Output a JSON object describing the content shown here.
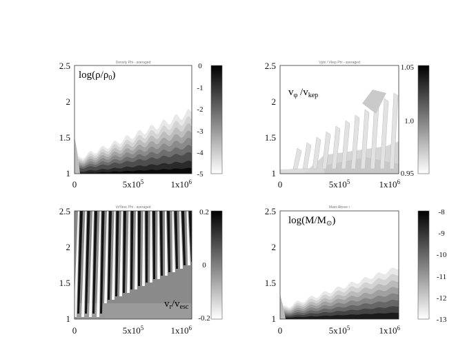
{
  "chart_data": [
    {
      "type": "heatmap",
      "panel": "density",
      "title": "Density Phi - averaged",
      "label": {
        "main": "log(ρ/ρ",
        "sub": "0",
        "tail": ")"
      },
      "x_ticks": {
        "zero": "0",
        "mid": "5x10",
        "mid_exp": "5",
        "end": "1x10",
        "end_exp": "6"
      },
      "xlim": [
        0,
        1000000
      ],
      "ylim": [
        1,
        2.5
      ],
      "y_ticks": [
        "1",
        "1.5",
        "2",
        "2.5"
      ],
      "colorbar": {
        "range": [
          -5,
          0
        ],
        "ticks": [
          "0",
          "-1",
          "-2",
          "-3",
          "-4",
          "-5"
        ]
      }
    },
    {
      "type": "heatmap",
      "panel": "vphi",
      "title": "Vphi / Vkep Phi - averaged",
      "label": {
        "main": "v",
        "sub1": "φ",
        "mid": " /v",
        "sub2": "kep"
      },
      "x_ticks": {
        "zero": "0",
        "mid": "5x10",
        "mid_exp": "5",
        "end": "1x10",
        "end_exp": "6"
      },
      "xlim": [
        0,
        1000000
      ],
      "ylim": [
        1,
        2.5
      ],
      "y_ticks": [
        "1",
        "1.5",
        "2",
        "2.5"
      ],
      "colorbar": {
        "range": [
          0.95,
          1.05
        ],
        "ticks": [
          "1.05",
          "1.0",
          "0.95"
        ]
      }
    },
    {
      "type": "heatmap",
      "panel": "vr",
      "title": "Vr/Vesc Phi - averaged",
      "label": {
        "main": "v",
        "sub1": "r",
        "mid": "/v",
        "sub2": "esc"
      },
      "x_ticks": {
        "zero": "0",
        "mid": "5x10",
        "mid_exp": "5",
        "end": "1x10",
        "end_exp": "6"
      },
      "xlim": [
        0,
        1000000
      ],
      "ylim": [
        1,
        2.5
      ],
      "y_ticks": [
        "1",
        "1.5",
        "2",
        "2.5"
      ],
      "colorbar": {
        "range": [
          -0.2,
          0.2
        ],
        "ticks": [
          "0.2",
          "0",
          "-0.2"
        ]
      }
    },
    {
      "type": "heatmap",
      "panel": "mass",
      "title": "Mass Above r",
      "label": {
        "main": "log(M/M",
        "sub": "⊙",
        "tail": ")"
      },
      "x_ticks": {
        "zero": "0",
        "mid": "5x10",
        "mid_exp": "5",
        "end": "1x10",
        "end_exp": "6"
      },
      "xlim": [
        0,
        1000000
      ],
      "ylim": [
        1,
        2.5
      ],
      "y_ticks": [
        "1",
        "1.5",
        "2",
        "2.5"
      ],
      "colorbar": {
        "range": [
          -13,
          -8
        ],
        "ticks": [
          "-8",
          "-9",
          "-10",
          "-11",
          "-12",
          "-13"
        ]
      }
    }
  ]
}
